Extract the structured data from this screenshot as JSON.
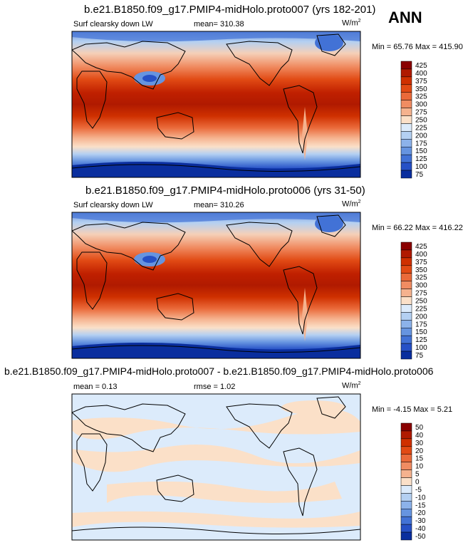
{
  "season": "ANN",
  "panels": [
    {
      "title": "b.e21.B1850.f09_g17.PMIP4-midHolo.proto007 (yrs 182-201)",
      "left_label": "Surf clearsky down LW",
      "mean_text": "mean= 310.38",
      "units": "W/m",
      "units_sup": "2",
      "minmax": "Min =  65.76 Max = 415.90"
    },
    {
      "title": "b.e21.B1850.f09_g17.PMIP4-midHolo.proto006 (yrs 31-50)",
      "left_label": "Surf clearsky down LW",
      "mean_text": "mean= 310.26",
      "units": "W/m",
      "units_sup": "2",
      "minmax": "Min =  66.22 Max = 416.22"
    },
    {
      "title": "b.e21.B1850.f09_g17.PMIP4-midHolo.proto007 - b.e21.B1850.f09_g17.PMIP4-midHolo.proto006",
      "left_label": "mean =   0.13",
      "mean_text": "rmse =   1.02",
      "units": "W/m",
      "units_sup": "2",
      "minmax": "Min =  -4.15 Max =  5.21"
    }
  ],
  "chart_data": [
    {
      "type": "heatmap",
      "title": "b.e21.B1850.f09_g17.PMIP4-midHolo.proto007 (yrs 182-201)",
      "variable": "Surf clearsky down LW",
      "mean": 310.38,
      "min": 65.76,
      "max": 415.9,
      "units": "W/m2",
      "colorbar_levels": [
        425,
        400,
        375,
        350,
        325,
        300,
        275,
        250,
        225,
        200,
        175,
        150,
        125,
        100,
        75
      ],
      "colorbar_colors": [
        "#8a0000",
        "#b01a00",
        "#cf3000",
        "#e14a14",
        "#ea6a3a",
        "#f08c62",
        "#f5b28e",
        "#fbe0c8",
        "#dcebfb",
        "#b4d0f2",
        "#8cb2ea",
        "#6694e0",
        "#4272d6",
        "#2650c6",
        "#0a2e9e"
      ]
    },
    {
      "type": "heatmap",
      "title": "b.e21.B1850.f09_g17.PMIP4-midHolo.proto006 (yrs 31-50)",
      "variable": "Surf clearsky down LW",
      "mean": 310.26,
      "min": 66.22,
      "max": 416.22,
      "units": "W/m2",
      "colorbar_levels": [
        425,
        400,
        375,
        350,
        325,
        300,
        275,
        250,
        225,
        200,
        175,
        150,
        125,
        100,
        75
      ],
      "colorbar_colors": [
        "#8a0000",
        "#b01a00",
        "#cf3000",
        "#e14a14",
        "#ea6a3a",
        "#f08c62",
        "#f5b28e",
        "#fbe0c8",
        "#dcebfb",
        "#b4d0f2",
        "#8cb2ea",
        "#6694e0",
        "#4272d6",
        "#2650c6",
        "#0a2e9e"
      ]
    },
    {
      "type": "heatmap",
      "title": "b.e21.B1850.f09_g17.PMIP4-midHolo.proto007 - b.e21.B1850.f09_g17.PMIP4-midHolo.proto006",
      "mean": 0.13,
      "rmse": 1.02,
      "min": -4.15,
      "max": 5.21,
      "units": "W/m2",
      "colorbar_levels": [
        50,
        40,
        30,
        20,
        15,
        10,
        5,
        0,
        -5,
        -10,
        -15,
        -20,
        -30,
        -40,
        -50
      ],
      "colorbar_colors": [
        "#8a0000",
        "#b01a00",
        "#cf3000",
        "#e14a14",
        "#ea6a3a",
        "#f08c62",
        "#f5b28e",
        "#fbe0c8",
        "#dcebfb",
        "#b4d0f2",
        "#8cb2ea",
        "#6694e0",
        "#4272d6",
        "#2650c6",
        "#0a2e9e"
      ]
    }
  ]
}
